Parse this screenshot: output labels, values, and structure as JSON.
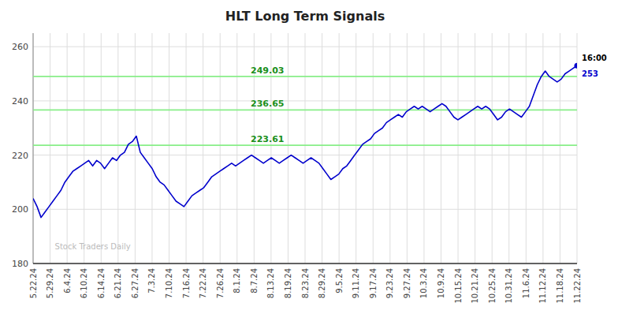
{
  "chart_data": {
    "type": "line",
    "title": "HLT Long Term Signals",
    "color": "#0000CC",
    "grid": true,
    "ylim": [
      180,
      265
    ],
    "yticks": [
      180,
      200,
      220,
      240,
      260
    ],
    "xlim": [
      0,
      137
    ],
    "xticks": [
      {
        "value": 0,
        "label": "5.22.24"
      },
      {
        "value": 4.28125,
        "label": "5.29.24"
      },
      {
        "value": 8.5625,
        "label": "6.4.24"
      },
      {
        "value": 12.84375,
        "label": "6.10.24"
      },
      {
        "value": 17.125,
        "label": "6.14.24"
      },
      {
        "value": 21.40625,
        "label": "6.21.24"
      },
      {
        "value": 25.6875,
        "label": "6.27.24"
      },
      {
        "value": 29.96875,
        "label": "7.3.24"
      },
      {
        "value": 34.25,
        "label": "7.10.24"
      },
      {
        "value": 38.53125,
        "label": "7.16.24"
      },
      {
        "value": 42.8125,
        "label": "7.22.24"
      },
      {
        "value": 47.09375,
        "label": "7.26.24"
      },
      {
        "value": 51.375,
        "label": "8.1.24"
      },
      {
        "value": 55.65625,
        "label": "8.7.24"
      },
      {
        "value": 59.9375,
        "label": "8.13.24"
      },
      {
        "value": 64.21875,
        "label": "8.19.24"
      },
      {
        "value": 68.5,
        "label": "8.23.24"
      },
      {
        "value": 72.78125,
        "label": "8.29.24"
      },
      {
        "value": 77.0625,
        "label": "9.5.24"
      },
      {
        "value": 81.34375,
        "label": "9.11.24"
      },
      {
        "value": 85.625,
        "label": "9.17.24"
      },
      {
        "value": 89.90625,
        "label": "9.23.24"
      },
      {
        "value": 94.1875,
        "label": "9.27.24"
      },
      {
        "value": 98.46875,
        "label": "10.3.24"
      },
      {
        "value": 102.75,
        "label": "10.9.24"
      },
      {
        "value": 107.03125,
        "label": "10.15.24"
      },
      {
        "value": 111.3125,
        "label": "10.21.24"
      },
      {
        "value": 115.59375,
        "label": "10.25.24"
      },
      {
        "value": 119.875,
        "label": "10.31.24"
      },
      {
        "value": 124.15625,
        "label": "11.6.24"
      },
      {
        "value": 128.4375,
        "label": "11.12.24"
      },
      {
        "value": 132.71875,
        "label": "11.18.24"
      },
      {
        "value": 137,
        "label": "11.22.24"
      }
    ],
    "reference_lines": [
      {
        "value": 223.61,
        "label": "223.61",
        "color": "#88ee88"
      },
      {
        "value": 236.65,
        "label": "236.65",
        "color": "#88ee88"
      },
      {
        "value": 249.03,
        "label": "249.03",
        "color": "#88ee88"
      }
    ],
    "annotations": [
      "Stock Traders Daily",
      "16:00"
    ],
    "values": [
      204,
      201,
      197,
      199,
      201,
      203,
      205,
      207,
      210,
      212,
      214,
      215,
      216,
      217,
      218,
      216,
      218,
      217,
      215,
      217,
      219,
      218,
      220,
      221,
      224,
      225,
      227,
      221,
      219,
      217,
      215,
      212,
      210,
      209,
      207,
      205,
      203,
      202,
      201,
      203,
      205,
      206,
      207,
      208,
      210,
      212,
      213,
      214,
      215,
      216,
      217,
      216,
      217,
      218,
      219,
      220,
      219,
      218,
      217,
      218,
      219,
      218,
      217,
      218,
      219,
      220,
      219,
      218,
      217,
      218,
      219,
      218,
      217,
      215,
      213,
      211,
      212,
      213,
      215,
      216,
      218,
      220,
      222,
      224,
      225,
      226,
      228,
      229,
      230,
      232,
      233,
      234,
      235,
      234,
      236,
      237,
      238,
      237,
      238,
      237,
      236,
      237,
      238,
      239,
      238,
      236,
      234,
      233,
      234,
      235,
      236,
      237,
      238,
      237,
      238,
      237,
      235,
      233,
      234,
      236,
      237,
      236,
      235,
      234,
      236,
      238,
      242,
      246,
      249,
      251,
      249,
      248,
      247,
      248,
      250,
      251,
      252,
      253
    ]
  }
}
